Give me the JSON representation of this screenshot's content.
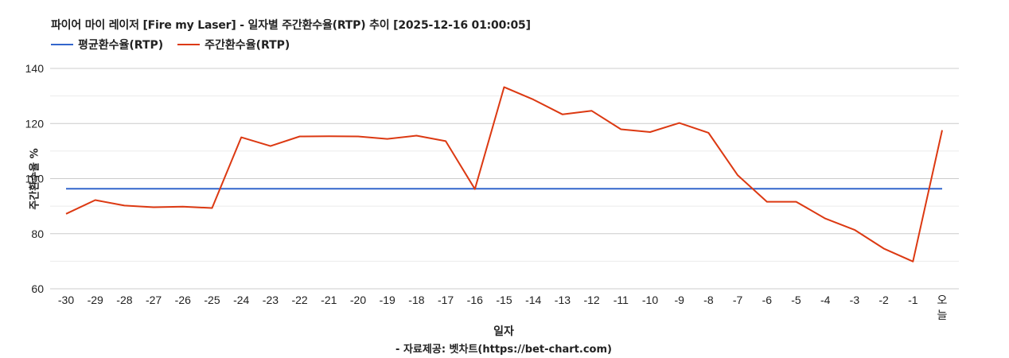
{
  "title": "파이어 마이 레이저 [Fire my Laser] - 일자별 주간환수율(RTP) 추이 [2025-12-16 01:00:05]",
  "legend": [
    {
      "label": "평균환수율(RTP)",
      "color": "#3366cc"
    },
    {
      "label": "주간환수율(RTP)",
      "color": "#dc3912"
    }
  ],
  "axes": {
    "ylabel": "주간환수율 %",
    "xlabel": "일자",
    "source": "- 자료제공: 벳차트(https://bet-chart.com)"
  },
  "chart_data": {
    "type": "line",
    "title": "파이어 마이 레이저 [Fire my Laser] - 일자별 주간환수율(RTP) 추이 [2025-12-16 01:00:05]",
    "xlabel": "일자",
    "ylabel": "주간환수율 %",
    "ylim": [
      60,
      140
    ],
    "yticks": [
      60,
      80,
      100,
      120,
      140
    ],
    "minor_gridlines": [
      70,
      90,
      110,
      130
    ],
    "grid": true,
    "legend_position": "top",
    "categories": [
      "-30",
      "-29",
      "-28",
      "-27",
      "-26",
      "-25",
      "-24",
      "-23",
      "-22",
      "-21",
      "-20",
      "-19",
      "-18",
      "-17",
      "-16",
      "-15",
      "-14",
      "-13",
      "-12",
      "-11",
      "-10",
      "-9",
      "-8",
      "-7",
      "-6",
      "-5",
      "-4",
      "-3",
      "-2",
      "-1",
      "오늘"
    ],
    "series": [
      {
        "name": "평균환수율(RTP)",
        "color": "#3366cc",
        "values": [
          96.3,
          96.3,
          96.3,
          96.3,
          96.3,
          96.3,
          96.3,
          96.3,
          96.3,
          96.3,
          96.3,
          96.3,
          96.3,
          96.3,
          96.3,
          96.3,
          96.3,
          96.3,
          96.3,
          96.3,
          96.3,
          96.3,
          96.3,
          96.3,
          96.3,
          96.3,
          96.3,
          96.3,
          96.3,
          96.3,
          96.3
        ]
      },
      {
        "name": "주간환수율(RTP)",
        "color": "#dc3912",
        "values": [
          87.2,
          92.2,
          90.2,
          89.6,
          89.8,
          89.3,
          115.0,
          111.8,
          115.3,
          115.4,
          115.3,
          114.4,
          115.6,
          113.6,
          96.2,
          133.2,
          128.7,
          123.3,
          124.6,
          117.9,
          116.9,
          120.2,
          116.6,
          101.2,
          91.6,
          91.6,
          85.5,
          81.4,
          74.6,
          69.9,
          117.6
        ]
      }
    ]
  }
}
